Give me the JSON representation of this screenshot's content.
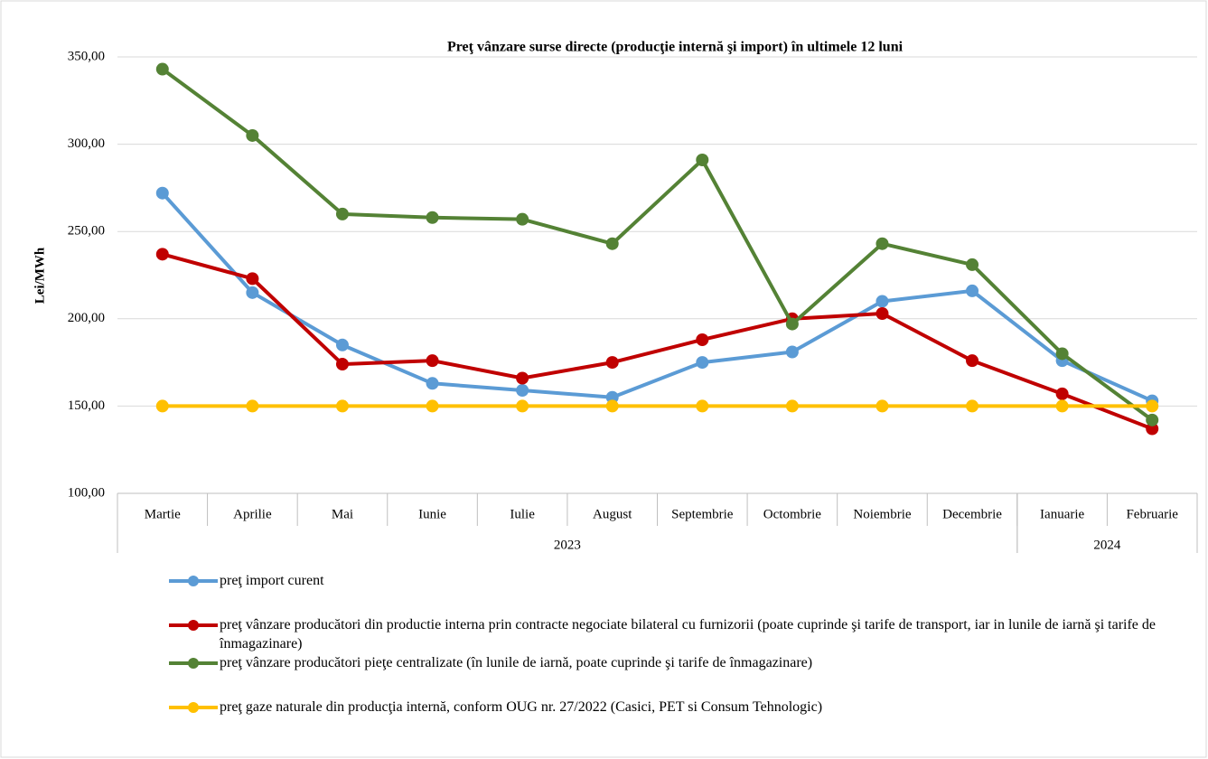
{
  "chart_data": {
    "type": "line",
    "title": "Preţ vânzare surse directe (producţie internă şi import) în ultimele 12 luni",
    "ylabel": "Lei/MWh",
    "categories": [
      "Martie",
      "Aprilie",
      "Mai",
      "Iunie",
      "Iulie",
      "August",
      "Septembrie",
      "Octombrie",
      "Noiembrie",
      "Decembrie",
      "Ianuarie",
      "Februarie"
    ],
    "x_groups": [
      {
        "label": "2023",
        "start": 0,
        "end": 9
      },
      {
        "label": "2024",
        "start": 10,
        "end": 11
      }
    ],
    "ylim": [
      100,
      350
    ],
    "yticks": [
      {
        "value": 100,
        "label": "100,00"
      },
      {
        "value": 150,
        "label": "150,00"
      },
      {
        "value": 200,
        "label": "200,00"
      },
      {
        "value": 250,
        "label": "250,00"
      },
      {
        "value": 300,
        "label": "300,00"
      },
      {
        "value": 350,
        "label": "350,00"
      }
    ],
    "grid": true,
    "series": [
      {
        "name": "preţ import curent",
        "color": "#5b9bd5",
        "values": [
          272,
          215,
          185,
          163,
          159,
          155,
          175,
          181,
          210,
          216,
          176,
          153
        ]
      },
      {
        "name": "preţ vânzare producători din productie interna prin contracte negociate bilateral cu furnizorii (poate cuprinde şi tarife de transport, iar in lunile de iarnă şi tarife de înmagazinare)",
        "color": "#c00000",
        "values": [
          237,
          223,
          174,
          176,
          166,
          175,
          188,
          200,
          203,
          176,
          157,
          137
        ]
      },
      {
        "name": "preţ vânzare producători pieţe centralizate (în lunile de iarnă, poate cuprinde şi tarife de înmagazinare)",
        "color": "#548235",
        "values": [
          343,
          305,
          260,
          258,
          257,
          243,
          291,
          197,
          243,
          231,
          180,
          142
        ]
      },
      {
        "name": "preţ gaze naturale din producţia internă, conform OUG nr. 27/2022 (Casici, PET si Consum Tehnologic)",
        "color": "#ffc000",
        "values": [
          150,
          150,
          150,
          150,
          150,
          150,
          150,
          150,
          150,
          150,
          150,
          150
        ]
      }
    ]
  }
}
